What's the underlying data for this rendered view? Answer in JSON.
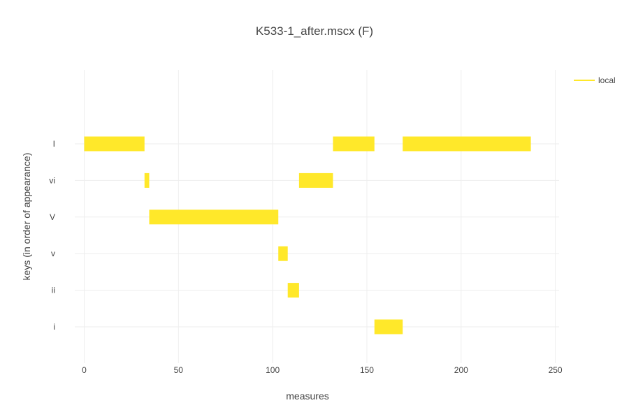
{
  "chart_data": {
    "type": "bar",
    "orientation": "horizontal-ranges",
    "title": "K533-1_after.mscx (F)",
    "xlabel": "measures",
    "ylabel": "keys (in order of appearance)",
    "xlim": [
      -5,
      252
    ],
    "x_ticks": [
      0,
      50,
      100,
      150,
      200,
      250
    ],
    "categories": [
      "I",
      "vi",
      "V",
      "v",
      "ii",
      "i"
    ],
    "grid": true,
    "legend": {
      "position": "top-right",
      "entries": [
        "local"
      ]
    },
    "series": [
      {
        "name": "local",
        "color": "#ffe82a",
        "segments": [
          {
            "key": "I",
            "start": 0,
            "end": 32
          },
          {
            "key": "vi",
            "start": 32,
            "end": 34.5
          },
          {
            "key": "V",
            "start": 34.5,
            "end": 103
          },
          {
            "key": "v",
            "start": 103,
            "end": 108
          },
          {
            "key": "ii",
            "start": 108,
            "end": 114
          },
          {
            "key": "vi",
            "start": 114,
            "end": 132
          },
          {
            "key": "I",
            "start": 132,
            "end": 154
          },
          {
            "key": "i",
            "start": 154,
            "end": 169
          },
          {
            "key": "I",
            "start": 169,
            "end": 237
          }
        ]
      }
    ]
  }
}
